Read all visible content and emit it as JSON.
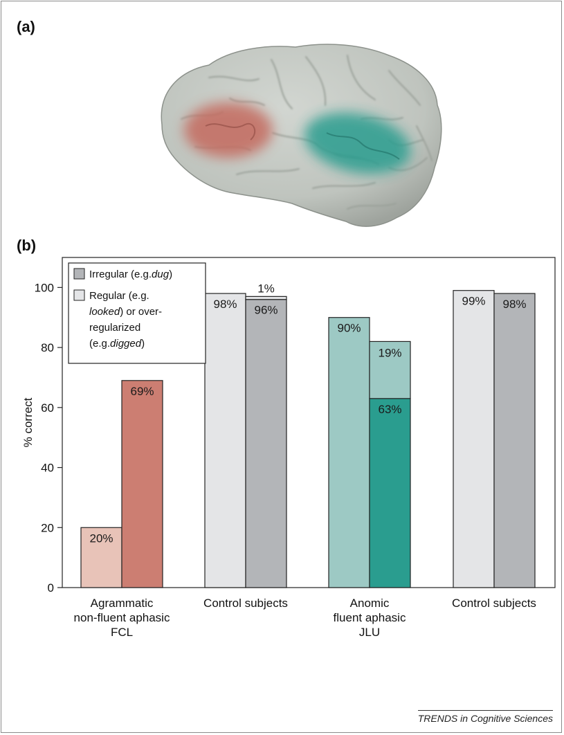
{
  "panels": {
    "a_label": "(a)",
    "b_label": "(b)"
  },
  "source_credit": "TRENDS in Cognitive Sciences",
  "brain": {
    "cortex_color": "#c3c8c2",
    "frontal_region_color": "#c46a5e",
    "temporal_region_color": "#2a9d8f"
  },
  "chart_data": {
    "type": "bar",
    "ylabel": "% correct",
    "ylim": [
      0,
      110
    ],
    "yticks": [
      "0",
      "20",
      "40",
      "60",
      "80",
      "100"
    ],
    "grid": false,
    "legend": {
      "placement": "top-left",
      "entries": [
        {
          "parts": [
            {
              "text": "Irregular (e.g.",
              "italic": false
            },
            {
              "text": "dug",
              "italic": true
            },
            {
              "text": ")",
              "italic": false
            }
          ],
          "swatch": "#b3b5b8"
        },
        {
          "parts": [
            {
              "text": "Regular (e.g.",
              "italic": false
            }
          ],
          "swatch": "#e4e5e7"
        },
        {
          "parts": [
            {
              "text": "looked",
              "italic": true
            },
            {
              "text": ") or over-",
              "italic": false
            }
          ]
        },
        {
          "parts": [
            {
              "text": "regularized",
              "italic": false
            }
          ]
        },
        {
          "parts": [
            {
              "text": "(e.g.",
              "italic": false
            },
            {
              "text": "digged",
              "italic": true
            },
            {
              "text": ")",
              "italic": false
            }
          ]
        }
      ]
    },
    "groups": [
      {
        "label_lines": [
          "Agrammatic",
          "non-fluent aphasic",
          "FCL"
        ],
        "bars": [
          {
            "series": "Regular",
            "value": 20,
            "label": "20%",
            "color": "#e8c3b8"
          },
          {
            "series": "Irregular",
            "value": 69,
            "label": "69%",
            "color": "#cc7e72"
          }
        ]
      },
      {
        "label_lines": [
          "Control subjects"
        ],
        "bars": [
          {
            "series": "Regular",
            "value": 98,
            "label": "98%",
            "color": "#e4e5e7"
          },
          {
            "series": "Irregular",
            "value": 96,
            "label": "96%",
            "color": "#b3b5b8",
            "stack": {
              "value": 1,
              "label": "1%",
              "color": "#e4e5e7"
            }
          }
        ]
      },
      {
        "label_lines": [
          "Anomic",
          "fluent aphasic",
          "JLU"
        ],
        "bars": [
          {
            "series": "Regular",
            "value": 90,
            "label": "90%",
            "color": "#9dc9c4"
          },
          {
            "series": "Irregular",
            "value": 63,
            "label": "63%",
            "color": "#2a9d8f",
            "stack": {
              "value": 19,
              "label": "19%",
              "color": "#9dc9c4"
            }
          }
        ]
      },
      {
        "label_lines": [
          "Control subjects"
        ],
        "bars": [
          {
            "series": "Regular",
            "value": 99,
            "label": "99%",
            "color": "#e4e5e7"
          },
          {
            "series": "Irregular",
            "value": 98,
            "label": "98%",
            "color": "#b3b5b8"
          }
        ]
      }
    ]
  }
}
